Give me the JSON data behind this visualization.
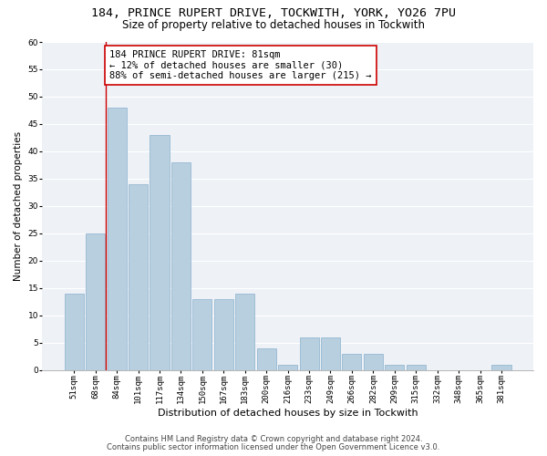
{
  "title1": "184, PRINCE RUPERT DRIVE, TOCKWITH, YORK, YO26 7PU",
  "title2": "Size of property relative to detached houses in Tockwith",
  "xlabel": "Distribution of detached houses by size in Tockwith",
  "ylabel": "Number of detached properties",
  "categories": [
    "51sqm",
    "68sqm",
    "84sqm",
    "101sqm",
    "117sqm",
    "134sqm",
    "150sqm",
    "167sqm",
    "183sqm",
    "200sqm",
    "216sqm",
    "233sqm",
    "249sqm",
    "266sqm",
    "282sqm",
    "299sqm",
    "315sqm",
    "332sqm",
    "348sqm",
    "365sqm",
    "381sqm"
  ],
  "values": [
    14,
    25,
    48,
    34,
    43,
    38,
    13,
    13,
    14,
    4,
    1,
    6,
    6,
    3,
    3,
    1,
    1,
    0,
    0,
    0,
    1
  ],
  "bar_color": "#b8cfe0",
  "bar_edge_color": "#8ab0cc",
  "vline_x": 1.5,
  "vline_color": "#cc0000",
  "annotation_text": "184 PRINCE RUPERT DRIVE: 81sqm\n← 12% of detached houses are smaller (30)\n88% of semi-detached houses are larger (215) →",
  "annotation_box_color": "#ffffff",
  "annotation_box_edge_color": "#cc0000",
  "ylim": [
    0,
    60
  ],
  "yticks": [
    0,
    5,
    10,
    15,
    20,
    25,
    30,
    35,
    40,
    45,
    50,
    55,
    60
  ],
  "footer1": "Contains HM Land Registry data © Crown copyright and database right 2024.",
  "footer2": "Contains public sector information licensed under the Open Government Licence v3.0.",
  "bg_color": "#eef2f7",
  "grid_color": "#ffffff",
  "title1_fontsize": 9.5,
  "title2_fontsize": 8.5,
  "xlabel_fontsize": 8,
  "ylabel_fontsize": 7.5,
  "annotation_fontsize": 7.5,
  "tick_fontsize": 6.5,
  "footer_fontsize": 6
}
